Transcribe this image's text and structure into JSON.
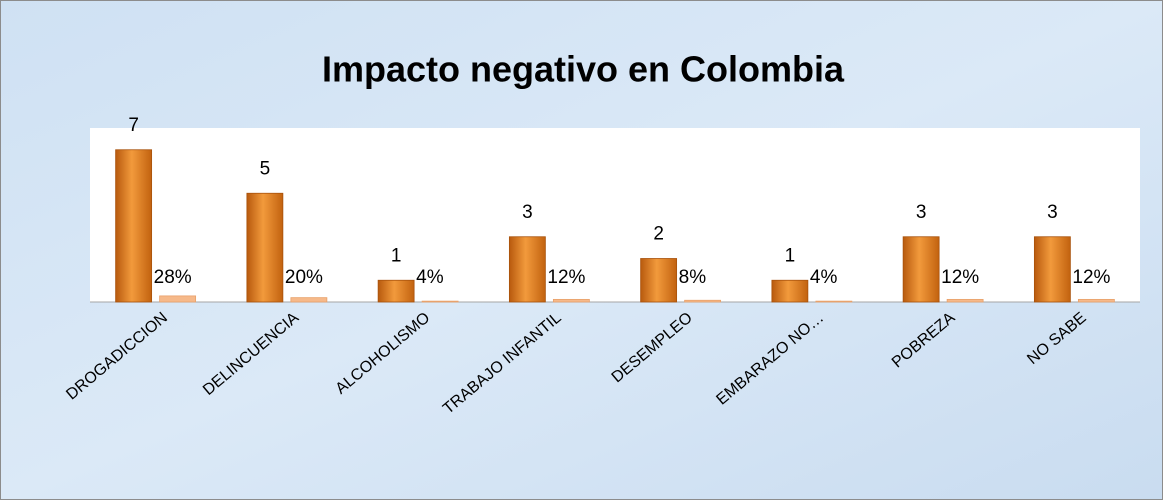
{
  "chart_data": {
    "type": "bar",
    "title": "Impacto negativo en Colombia",
    "categories": [
      "DROGADICCION",
      "DELINCUENCIA",
      "ALCOHOLISMO",
      "TRABAJO INFANTIL",
      "DESEMPLEO",
      "EMBARAZO NO…",
      "POBREZA",
      "NO SABE"
    ],
    "series": [
      {
        "color": "#e07a1c",
        "values": [
          7,
          5,
          1,
          3,
          2,
          1,
          3,
          3
        ]
      },
      {
        "color": "#f6b98a",
        "axis": "y2",
        "values": [
          28,
          20,
          4,
          12,
          8,
          4,
          12,
          12
        ],
        "value_labels": [
          "28%",
          "20%",
          "4%",
          "12%",
          "8%",
          "4%",
          "12%",
          "12%"
        ]
      }
    ],
    "ylim": [
      0,
      8
    ],
    "y2lim": [
      0,
      800
    ]
  }
}
